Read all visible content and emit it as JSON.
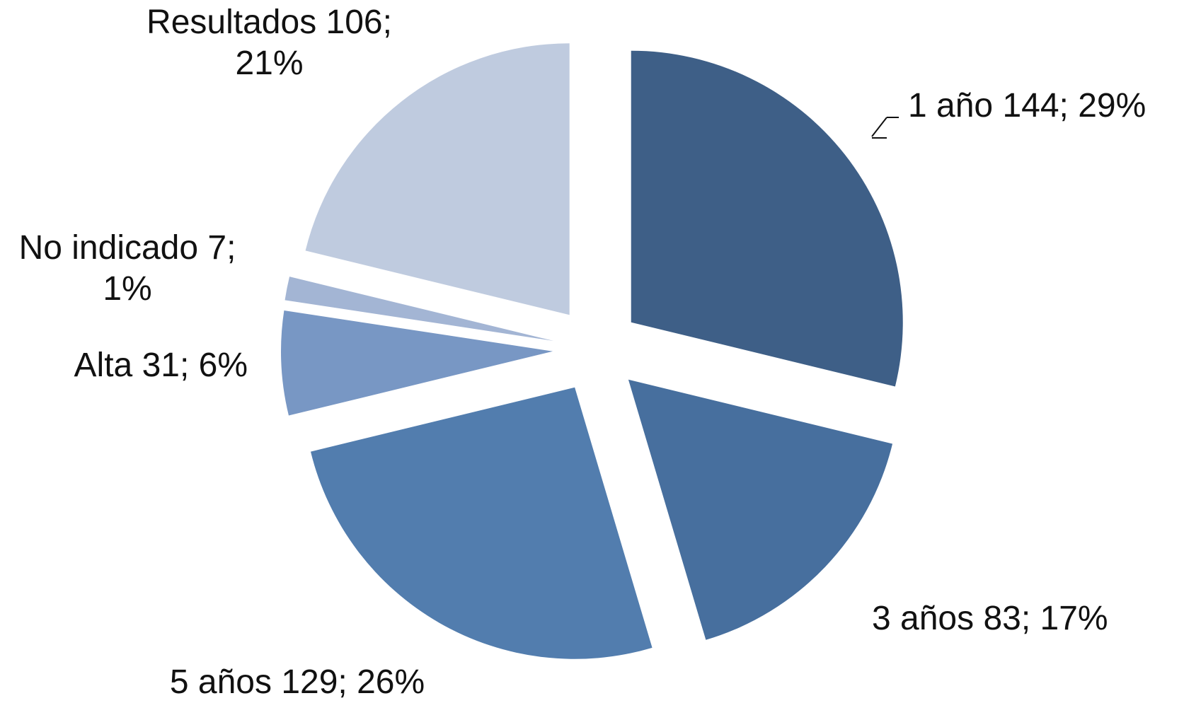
{
  "chart_data": {
    "type": "pie",
    "categories": [
      "1 año",
      "3 años",
      "5 años",
      "Alta",
      "No indicado",
      "Resultados"
    ],
    "values": [
      144,
      83,
      129,
      31,
      7,
      106
    ],
    "value_labels": [
      "1 año 144; 29%",
      "3 años 83; 17%",
      "5 años 129; 26%",
      "Alta 31; 6%",
      "No indicado 7; 1%",
      "Resultados 106; 21%"
    ],
    "colors": [
      "#3e5f87",
      "#476f9e",
      "#527dae",
      "#7897c4",
      "#a3b5d4",
      "#bfcbdf"
    ]
  }
}
